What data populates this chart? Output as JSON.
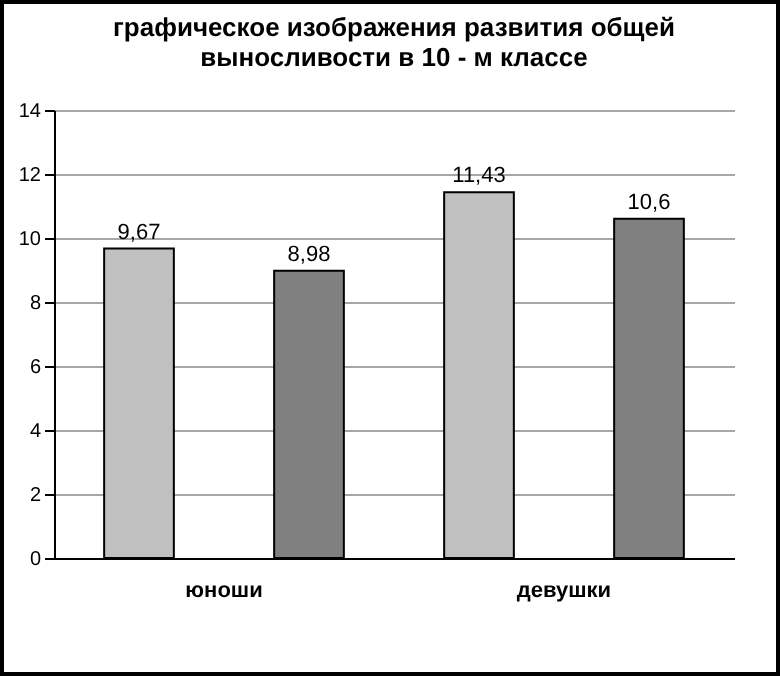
{
  "chart_data": {
    "type": "bar",
    "title": "графическое изображения развития общей\nвыносливости в 10 - м классе",
    "categories": [
      "юноши",
      "девушки"
    ],
    "series": [
      {
        "color": "#c0c0c0",
        "values": [
          9.67,
          11.43
        ],
        "value_labels": [
          "9,67",
          "11,43"
        ]
      },
      {
        "color": "#808080",
        "values": [
          8.98,
          10.6
        ],
        "value_labels": [
          "8,98",
          "10,6"
        ]
      }
    ],
    "ylim": [
      0,
      14
    ],
    "yticks": [
      0,
      2,
      4,
      6,
      8,
      10,
      12,
      14
    ],
    "grid": "y",
    "legend": false
  }
}
